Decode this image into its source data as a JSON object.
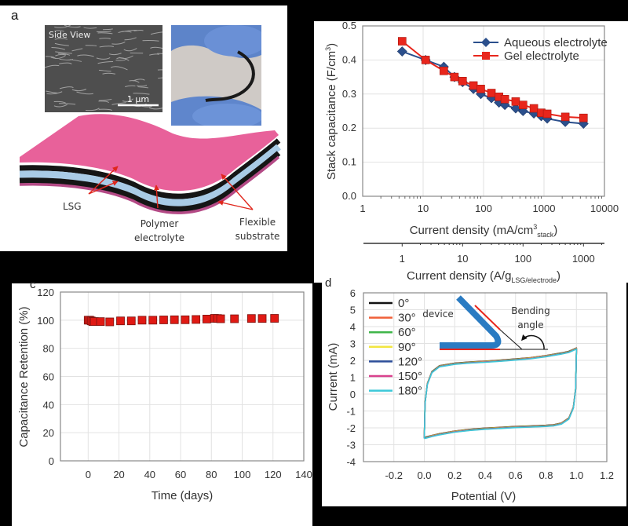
{
  "panel_labels": {
    "a": "a",
    "c": "c",
    "d": "d"
  },
  "panel_a": {
    "sem_label": "Side View",
    "scale_bar": "1 μm",
    "labels": {
      "lsg": "LSG",
      "polymer_line1": "Polymer",
      "polymer_line2": "electrolyte",
      "flexible_line1": "Flexible",
      "flexible_line2": "substrate"
    },
    "colors": {
      "substrate": "#e8619a",
      "lsg": "#151515",
      "electrolyte": "#a9cbe6",
      "arrow": "#e0261c"
    }
  },
  "chart_data": [
    {
      "id": "b",
      "type": "line",
      "xscale": "log",
      "xlim": [
        1,
        10000
      ],
      "ylim": [
        0,
        0.5
      ],
      "grid": true,
      "legend": "top-right",
      "xticks": [
        "1",
        "10",
        "100",
        "1000",
        "10000"
      ],
      "yticks": [
        "0.0",
        "0.1",
        "0.2",
        "0.3",
        "0.4",
        "0.5"
      ],
      "xlabel": {
        "main": "Current density (mA/cm",
        "sup": "3",
        "sub": "stack",
        "close": ")"
      },
      "ylabel": {
        "main": "Stack capacitance (F/cm",
        "sup": "3",
        "close": ")"
      },
      "secondary_xaxis": {
        "scale": "log",
        "ticks": [
          1,
          10,
          100,
          1000
        ],
        "tick_labels": [
          "1",
          "10",
          "100",
          "1000"
        ],
        "label": {
          "main": "Current density (A/g",
          "sub": "LSG/electrode",
          "close": ")"
        }
      },
      "x": [
        4.5,
        11,
        22,
        33,
        45,
        68,
        90,
        135,
        180,
        225,
        340,
        450,
        680,
        900,
        1130,
        2250,
        4500
      ],
      "series": [
        {
          "name": "Aqueous electrolyte",
          "color": "#2b4f8c",
          "marker": "diamond",
          "values": [
            0.425,
            0.4,
            0.38,
            0.35,
            0.335,
            0.315,
            0.3,
            0.288,
            0.275,
            0.268,
            0.258,
            0.25,
            0.243,
            0.235,
            0.228,
            0.218,
            0.213
          ]
        },
        {
          "name": "Gel electrolyte",
          "color": "#e8261c",
          "marker": "square",
          "values": [
            0.455,
            0.4,
            0.368,
            0.35,
            0.338,
            0.325,
            0.315,
            0.303,
            0.292,
            0.285,
            0.278,
            0.268,
            0.258,
            0.245,
            0.242,
            0.233,
            0.23
          ]
        }
      ]
    },
    {
      "id": "c",
      "type": "scatter",
      "xlim": [
        -18,
        140
      ],
      "ylim": [
        0,
        120
      ],
      "grid": true,
      "xticks": [
        "0",
        "20",
        "40",
        "60",
        "80",
        "100",
        "120",
        "140"
      ],
      "yticks": [
        "0",
        "20",
        "40",
        "60",
        "80",
        "100",
        "120"
      ],
      "xlabel": "Time (days)",
      "ylabel": "Capacitance Retention (%)",
      "color": "#e01a14",
      "x": [
        0,
        1,
        2,
        3,
        4,
        8,
        14,
        21,
        28,
        35,
        42,
        49,
        56,
        63,
        70,
        77,
        82,
        84,
        86,
        95,
        106,
        113,
        121
      ],
      "y": [
        100,
        100,
        99.5,
        99,
        99,
        99,
        98.8,
        99.5,
        99.5,
        100,
        100,
        100.2,
        100.3,
        100.3,
        100.5,
        100.8,
        101.3,
        101.2,
        101,
        101,
        101.2,
        101.2,
        101.3
      ]
    },
    {
      "id": "d",
      "type": "line",
      "xlim": [
        -0.4,
        1.2
      ],
      "ylim": [
        -4,
        6
      ],
      "grid": true,
      "legend": "top-left",
      "xticks": [
        "-0.2",
        "0.0",
        "0.2",
        "0.4",
        "0.6",
        "0.8",
        "1.0",
        "1.2"
      ],
      "yticks": [
        "-4",
        "-3",
        "-2",
        "-1",
        "0",
        "1",
        "2",
        "3",
        "4",
        "5",
        "6"
      ],
      "xlabel": "Potential (V)",
      "ylabel": "Current (mA)",
      "inset": {
        "device_label": "device",
        "angle_line1": "Bending",
        "angle_line2": "angle",
        "device_color": "#2a7bc2",
        "electrode_color": "#e8261c"
      },
      "cv_curve": {
        "x": [
          0,
          0.005,
          0.02,
          0.05,
          0.1,
          0.2,
          0.3,
          0.4,
          0.5,
          0.6,
          0.7,
          0.8,
          0.9,
          0.95,
          1.0,
          1.0,
          0.995,
          0.98,
          0.95,
          0.9,
          0.85,
          0.8,
          0.7,
          0.6,
          0.5,
          0.4,
          0.3,
          0.2,
          0.1,
          0.05,
          0.01,
          0
        ],
        "y": [
          -2.6,
          -0.5,
          0.6,
          1.3,
          1.65,
          1.8,
          1.87,
          1.92,
          1.98,
          2.05,
          2.13,
          2.25,
          2.4,
          2.5,
          2.7,
          2.5,
          0.3,
          -0.8,
          -1.45,
          -1.75,
          -1.85,
          -1.88,
          -1.92,
          -1.95,
          -2.0,
          -2.05,
          -2.12,
          -2.22,
          -2.38,
          -2.48,
          -2.58,
          -2.6
        ]
      },
      "series": [
        {
          "name": "0°",
          "color": "#111111"
        },
        {
          "name": "30°",
          "color": "#f0603a"
        },
        {
          "name": "60°",
          "color": "#3fb54a"
        },
        {
          "name": "90°",
          "color": "#f2e640"
        },
        {
          "name": "120°",
          "color": "#2e4f9a"
        },
        {
          "name": "150°",
          "color": "#d9428e"
        },
        {
          "name": "180°",
          "color": "#3cc8d8"
        }
      ]
    }
  ]
}
